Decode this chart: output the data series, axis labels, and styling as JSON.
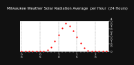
{
  "title": "Milwaukee Weather Solar Radiation Average  per Hour  (24 Hours)",
  "hours": [
    0,
    1,
    2,
    3,
    4,
    5,
    6,
    7,
    8,
    9,
    10,
    11,
    12,
    13,
    14,
    15,
    16,
    17,
    18,
    19,
    20,
    21,
    22,
    23
  ],
  "values": [
    0,
    0,
    0,
    0,
    0,
    0,
    0,
    10,
    55,
    130,
    220,
    310,
    370,
    340,
    270,
    190,
    110,
    45,
    8,
    0,
    0,
    0,
    0,
    0
  ],
  "dot_color": "#ff0000",
  "bg_color": "#111111",
  "plot_bg": "#ffffff",
  "grid_color": "#888888",
  "title_color": "#ffffff",
  "tick_color": "#ffffff",
  "spine_color": "#ffffff",
  "ylim": [
    0,
    400
  ],
  "yticks": [
    0,
    100,
    200,
    300,
    400
  ],
  "ytick_labels": [
    "0",
    "1\n0\n0",
    "2\n0\n0",
    "3\n0\n0",
    "4\n0\n0"
  ],
  "vlines": [
    0,
    5,
    10,
    15,
    20
  ],
  "title_fontsize": 3.8,
  "tick_fontsize": 3.0,
  "dot_size": 2.5,
  "line_width": 0.3
}
